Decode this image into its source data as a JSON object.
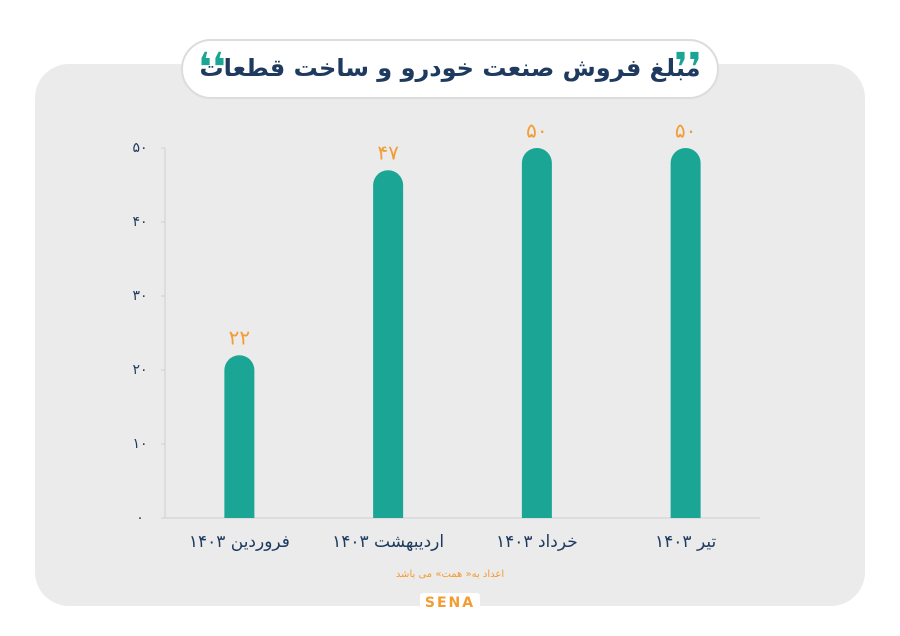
{
  "chart_data": {
    "type": "bar",
    "title": "مبلغ فروش صنعت خودرو و ساخت قطعات",
    "categories": [
      "فروردین ۱۴۰۳",
      "اردیبهشت ۱۴۰۳",
      "خرداد ۱۴۰۳",
      "تیر ۱۴۰۳"
    ],
    "values": [
      22,
      47,
      50,
      50
    ],
    "value_labels": [
      "۲۲",
      "۴۷",
      "۵۰",
      "۵۰"
    ],
    "color": "#1aa595",
    "ylim": [
      0,
      50
    ],
    "yticks": [
      {
        "value": 0,
        "label": "۰"
      },
      {
        "value": 10,
        "label": "۱۰"
      },
      {
        "value": 20,
        "label": "۲۰"
      },
      {
        "value": 30,
        "label": "۳۰"
      },
      {
        "value": 40,
        "label": "۴۰"
      },
      {
        "value": 50,
        "label": "۵۰"
      }
    ],
    "note": "اعداد به« همت» می باشد",
    "logo": "SENA"
  }
}
